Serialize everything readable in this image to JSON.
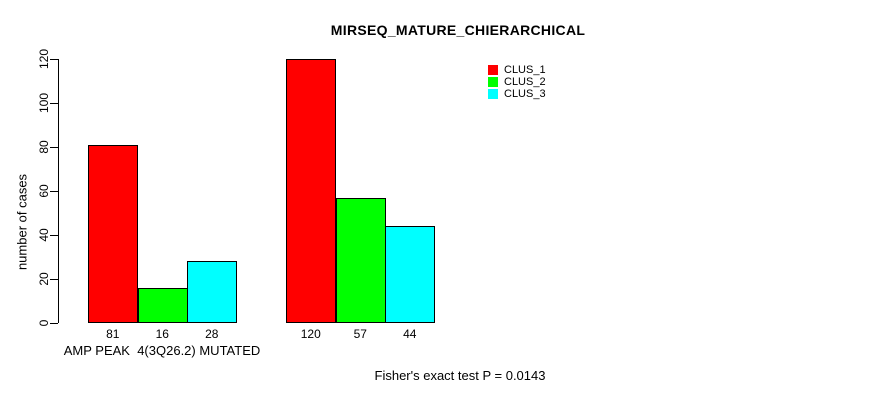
{
  "chart_data": {
    "type": "bar",
    "title": "MIRSEQ_MATURE_CHIERARCHICAL",
    "xlabel": "",
    "ylabel": "number of cases",
    "ylim": [
      0,
      120
    ],
    "yticks": [
      0,
      20,
      40,
      60,
      80,
      100,
      120
    ],
    "categories": [
      "AMP PEAK  4(3Q26.2) MUTATED",
      ""
    ],
    "series": [
      {
        "name": "CLUS_1",
        "color": "#ff0000",
        "values": [
          81,
          120
        ]
      },
      {
        "name": "CLUS_2",
        "color": "#00ff00",
        "values": [
          16,
          57
        ]
      },
      {
        "name": "CLUS_3",
        "color": "#00ffff",
        "values": [
          28,
          44
        ]
      }
    ],
    "bar_value_labels": [
      [
        81,
        16,
        28
      ],
      [
        120,
        57,
        44
      ]
    ],
    "legend_position": "top-right",
    "grid": false
  },
  "legend": {
    "items": [
      {
        "label": "CLUS_1",
        "color": "#ff0000"
      },
      {
        "label": "CLUS_2",
        "color": "#00ff00"
      },
      {
        "label": "CLUS_3",
        "color": "#00ffff"
      }
    ]
  },
  "annotations": {
    "footnote": "Fisher's exact test P = 0.0143"
  },
  "colors": {
    "axis": "#000000",
    "background": "#ffffff"
  }
}
